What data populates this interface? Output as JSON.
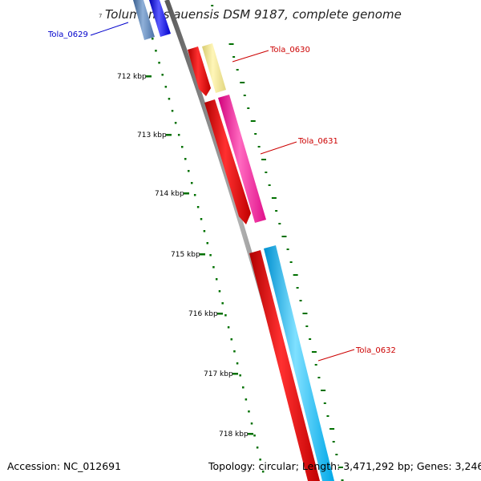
{
  "title": "Tolumonas auensis DSM 9187, complete genome",
  "title_mark": "7",
  "ticks": [
    "712 kbp",
    "713 kbp",
    "714 kbp",
    "715 kbp",
    "716 kbp",
    "717 kbp",
    "718 kbp"
  ],
  "genes": [
    {
      "id": "Tola_0629",
      "label_color": "#0000cc",
      "colors": [
        "#4f81bd",
        "#0000ee"
      ]
    },
    {
      "id": "Tola_0630",
      "label_color": "#cc0000",
      "colors": [
        "#ee0000",
        "#f0e68c"
      ]
    },
    {
      "id": "Tola_0631",
      "label_color": "#cc0000",
      "colors": [
        "#ee0000",
        "#ff1493"
      ]
    },
    {
      "id": "Tola_0632",
      "label_color": "#cc0000",
      "colors": [
        "#ee0000",
        "#00bfff"
      ]
    }
  ],
  "footer": {
    "accession": "Accession: NC_012691",
    "summary": "Topology: circular; Length: 3,471,292 bp; Genes: 3,246"
  },
  "colors": {
    "backbone": "#808080",
    "tick": "#007000",
    "leader": "#cc0000"
  }
}
